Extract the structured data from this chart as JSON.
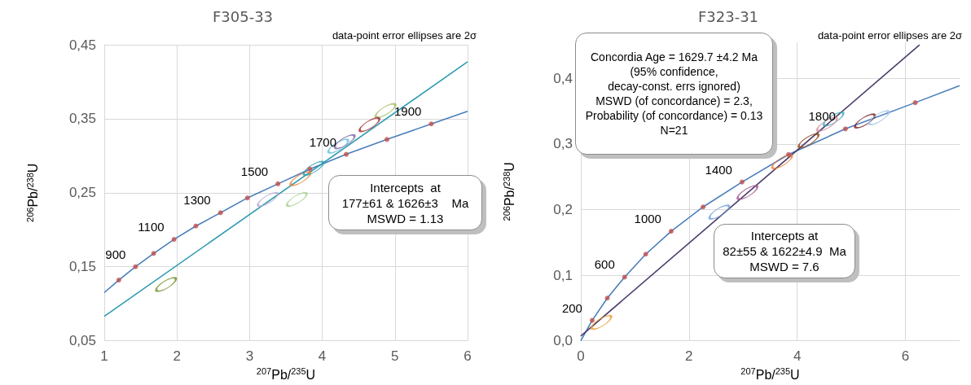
{
  "chart_data": [
    {
      "type": "line",
      "title": "F305-33",
      "subtitle": "data-point error ellipses are 2σ",
      "xlabel": "$^{207}$Pb/$^{235}$U",
      "ylabel": "$^{206}$Pb/$^{238}$U",
      "xlim": [
        1,
        6
      ],
      "xticks": [
        1,
        2,
        3,
        4,
        5,
        6
      ],
      "ylim": [
        0.05,
        0.45
      ],
      "yticks": [
        {
          "value": 0.05,
          "label": "0,05"
        },
        {
          "value": 0.15,
          "label": "0,15"
        },
        {
          "value": 0.25,
          "label": "0,25"
        },
        {
          "value": 0.35,
          "label": "0,35"
        },
        {
          "value": 0.45,
          "label": "0,45"
        }
      ],
      "grid": true,
      "series": [
        {
          "color": "#4a7ebb",
          "marker": "none",
          "x": [
            1,
            1.2,
            1.43,
            1.68,
            1.96,
            2.26,
            2.6,
            2.97,
            3.39,
            3.83,
            4.33,
            4.89,
            5.5,
            6
          ],
          "values": [
            0.115,
            0.132,
            0.15,
            0.168,
            0.187,
            0.205,
            0.223,
            0.243,
            0.262,
            0.282,
            0.302,
            0.322,
            0.343,
            0.36
          ]
        },
        {
          "color": "#2e9bb0",
          "marker": "none",
          "x": [
            1,
            6
          ],
          "values": [
            0.083,
            0.427
          ]
        },
        {
          "type": "scatter",
          "color": "#c0504d",
          "marker": "circle",
          "x": [
            1.2,
            1.43,
            1.68,
            1.96,
            2.26,
            2.6,
            2.97,
            3.39,
            3.83,
            4.33,
            4.89,
            5.5
          ],
          "values": [
            0.132,
            0.15,
            0.168,
            0.187,
            0.205,
            0.223,
            0.243,
            0.262,
            0.282,
            0.302,
            0.322,
            0.343
          ]
        },
        {
          "type": "scatter",
          "x": [
            1.85,
            3.65,
            3.25,
            3.7,
            3.88,
            4.22,
            4.87,
            4.65,
            4.31
          ],
          "values": [
            0.126,
            0.241,
            0.241,
            0.269,
            0.283,
            0.313,
            0.361,
            0.342,
            0.319
          ],
          "colors": [
            "#6b8e23",
            "#a9d18e",
            "#b4a7d6",
            "#ed7d31",
            "#2e9bb0",
            "#5bc0de",
            "#9bbb59",
            "#a0282d",
            "#8064a2"
          ]
        }
      ],
      "annotations": [
        "Intercepts  at\n177±61 & 1626±3    Ma\nMSWD = 1.13",
        {
          "text": "900",
          "x": 1.43,
          "y": 0.15
        },
        {
          "text": "1100",
          "x": 1.96,
          "y": 0.187
        },
        {
          "text": "1300",
          "x": 2.6,
          "y": 0.223
        },
        {
          "text": "1500",
          "x": 3.39,
          "y": 0.262
        },
        {
          "text": "1700",
          "x": 4.33,
          "y": 0.302
        },
        {
          "text": "1900",
          "x": 5.5,
          "y": 0.343
        }
      ]
    },
    {
      "type": "line",
      "title": "F323-31",
      "subtitle": "data-point error ellipses are 2σ",
      "xlabel": "$^{207}$Pb/$^{235}$U",
      "ylabel": "$^{206}$Pb/$^{238}$U",
      "xlim": [
        0,
        7
      ],
      "xticks": [
        0,
        2,
        4,
        6
      ],
      "ylim": [
        0,
        0.455
      ],
      "yticks": [
        {
          "value": 0,
          "label": "0,0"
        },
        {
          "value": 0.1,
          "label": "0,1"
        },
        {
          "value": 0.2,
          "label": "0,2"
        },
        {
          "value": 0.3,
          "label": "0,3"
        },
        {
          "value": 0.4,
          "label": "0,4"
        }
      ],
      "grid": true,
      "series": [
        {
          "color": "#4a7ebb",
          "marker": "none",
          "x": [
            0,
            0.21,
            0.49,
            0.81,
            1.2,
            1.67,
            2.26,
            2.98,
            3.84,
            4.89,
            6.18,
            7
          ],
          "values": [
            0,
            0.031,
            0.065,
            0.097,
            0.132,
            0.167,
            0.204,
            0.242,
            0.284,
            0.323,
            0.363,
            0.389
          ]
        },
        {
          "color": "#4b3b6b",
          "marker": "none",
          "x": [
            0,
            6.26
          ],
          "values": [
            0.007,
            0.451
          ]
        },
        {
          "type": "scatter",
          "color": "#c0504d",
          "marker": "circle",
          "x": [
            0.21,
            0.49,
            0.81,
            1.2,
            1.67,
            2.26,
            2.98,
            3.84,
            4.89,
            6.18
          ],
          "values": [
            0.031,
            0.065,
            0.097,
            0.132,
            0.167,
            0.204,
            0.242,
            0.284,
            0.323,
            0.363
          ]
        },
        {
          "type": "scatter",
          "x": [
            0.38,
            2.56,
            3.08,
            5.25,
            5.51,
            3.72,
            4.21,
            4.67,
            4.55
          ],
          "values": [
            0.028,
            0.196,
            0.226,
            0.335,
            0.34,
            0.273,
            0.305,
            0.338,
            0.33
          ],
          "colors": [
            "#e69b2e",
            "#6f9fd8",
            "#a0528f",
            "#7b1e1e",
            "#9dc3e6",
            "#ed7d31",
            "#8b4513",
            "#3ba6b8",
            "#d98c9a"
          ]
        }
      ],
      "annotations": [
        "Concordia Age = 1629.7 ±4.2 Ma\n(95% confidence,\ndecay-const. errs ignored)\nMSWD (of concordance) = 2.3,\nProbability (of concordance) = 0.13\nN=21",
        "Intercepts at\n82±55 & 1622±4.9  Ma\nMSWD = 7.6",
        {
          "text": "200",
          "x": 0.21,
          "y": 0.031
        },
        {
          "text": "600",
          "x": 0.81,
          "y": 0.097
        },
        {
          "text": "1000",
          "x": 1.67,
          "y": 0.167
        },
        {
          "text": "1400",
          "x": 2.98,
          "y": 0.242
        },
        {
          "text": "1800",
          "x": 4.89,
          "y": 0.323
        }
      ]
    }
  ]
}
